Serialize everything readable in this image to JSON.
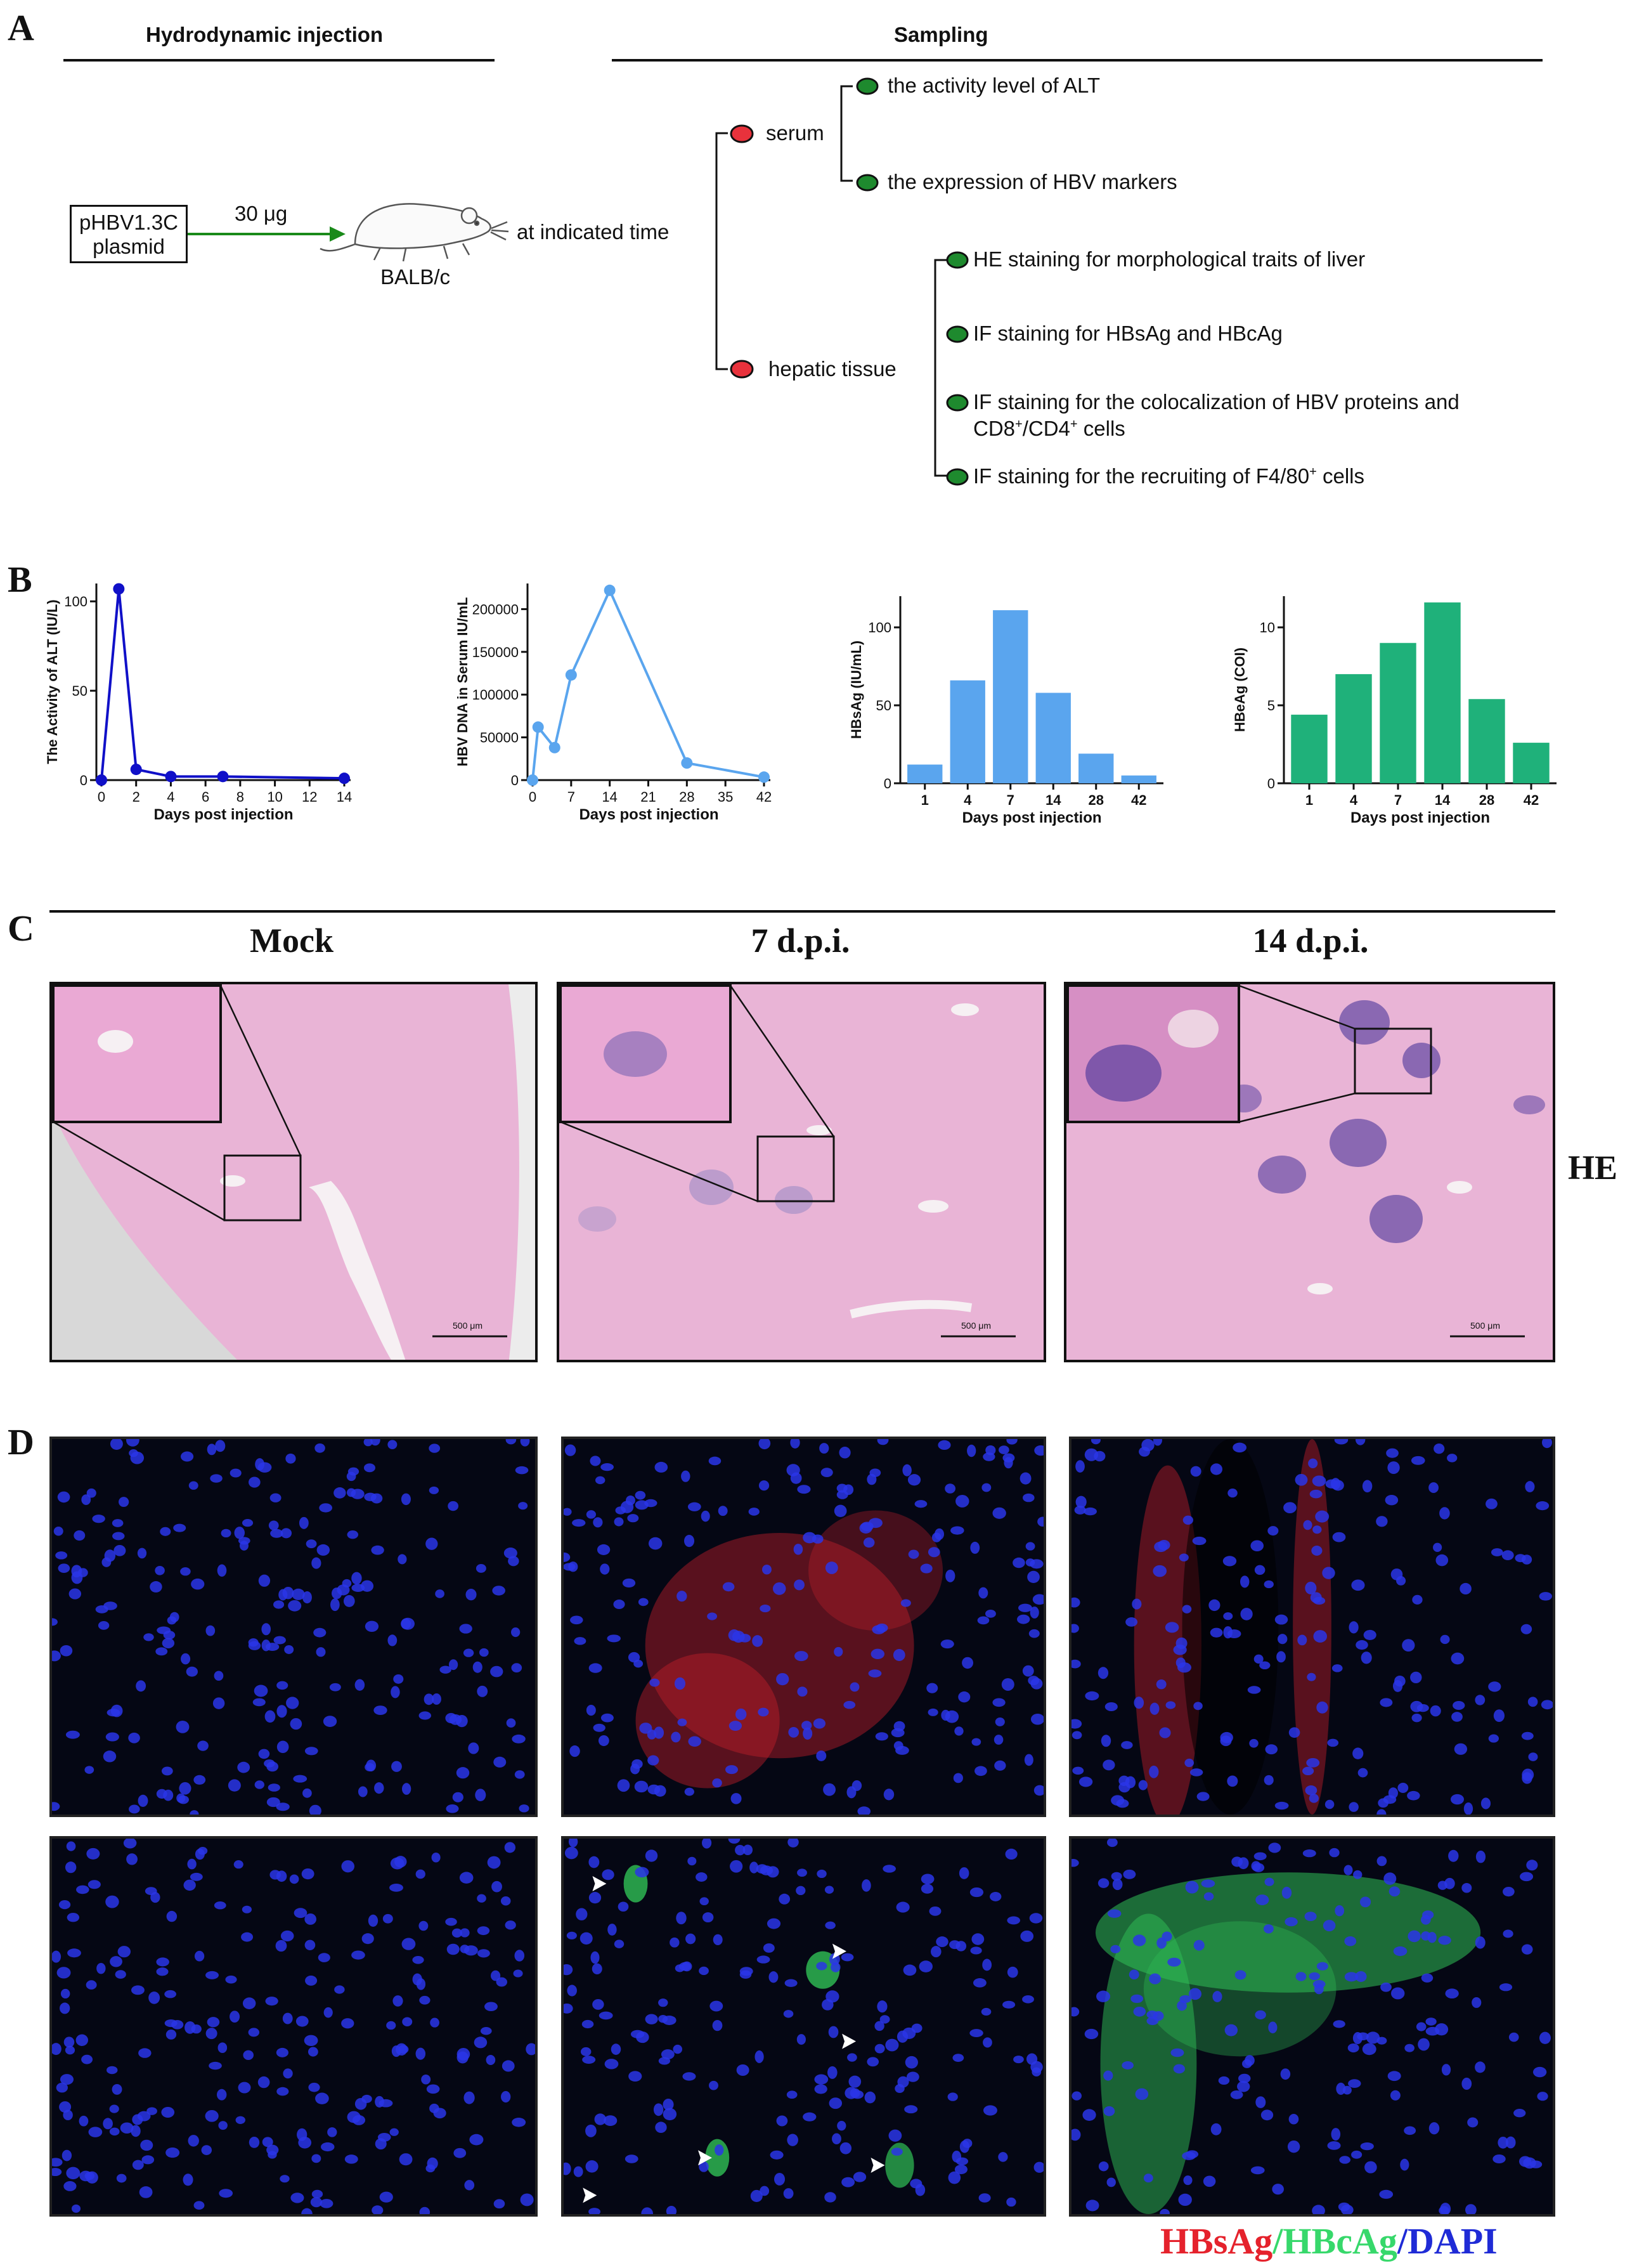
{
  "panels": {
    "a": "A",
    "b": "B",
    "c": "C",
    "d": "D"
  },
  "schematic": {
    "header_left": "Hydrodynamic injection",
    "header_right": "Sampling",
    "plasmid_line1": "pHBV1.3C",
    "plasmid_line2": "plasmid",
    "dose": "30 μg",
    "mouse_strain": "BALB/c",
    "timing": "at indicated time",
    "serum": "serum",
    "serum_items": [
      "the activity level of ALT",
      "the expression of HBV markers"
    ],
    "hepatic": "hepatic tissue",
    "hepatic_items": [
      "HE staining for morphological traits of liver",
      "IF staining for HBsAg and HBcAg",
      "IF staining for the colocalization of HBV proteins and",
      "IF staining for the recruiting of F4/80",
      " cells"
    ],
    "cd_line": {
      "cd8": "CD8",
      "plus": "+",
      "sep": "/CD4",
      "tail": " cells"
    },
    "colors": {
      "red_node": "#e8323c",
      "green_node": "#1e8a2e",
      "arrow": "#1a8a1a"
    }
  },
  "chart_data": [
    {
      "type": "line",
      "title": "",
      "xlabel": "Days post injection",
      "ylabel": "The Activity of ALT (IU/L)",
      "x": [
        0,
        1,
        2,
        4,
        7,
        14
      ],
      "series": [
        {
          "values": [
            0,
            107,
            6,
            2,
            2,
            1
          ]
        }
      ],
      "xticks": [
        "0",
        "2",
        "4",
        "6",
        "8",
        "10",
        "12",
        "14"
      ],
      "yticks": [
        "0",
        "50",
        "100"
      ],
      "xlim": [
        0,
        14
      ],
      "ylim": [
        0,
        110
      ],
      "color": "#1010c8"
    },
    {
      "type": "line",
      "title": "",
      "xlabel": "Days post injection",
      "ylabel": "HBV DNA in Serum IU/mL",
      "x": [
        0,
        1,
        4,
        7,
        14,
        28,
        42
      ],
      "series": [
        {
          "values": [
            0,
            62000,
            38000,
            123000,
            222000,
            20000,
            3500
          ]
        }
      ],
      "xticks": [
        "0",
        "7",
        "14",
        "21",
        "28",
        "35",
        "42"
      ],
      "yticks": [
        "0",
        "50000",
        "100000",
        "150000",
        "200000"
      ],
      "xlim": [
        0,
        42
      ],
      "ylim": [
        0,
        230000
      ],
      "color": "#5aa5ee"
    },
    {
      "type": "bar",
      "title": "",
      "xlabel": "Days post injection",
      "ylabel": "HBsAg (IU/mL)",
      "categories": [
        "1",
        "4",
        "7",
        "14",
        "28",
        "42"
      ],
      "values": [
        12,
        66,
        111,
        58,
        19,
        5
      ],
      "yticks": [
        "0",
        "50",
        "100"
      ],
      "ylim": [
        0,
        120
      ],
      "color": "#5aa5ee"
    },
    {
      "type": "bar",
      "title": "",
      "xlabel": "Days post injection",
      "ylabel": "HBeAg (COI)",
      "categories": [
        "1",
        "4",
        "7",
        "14",
        "28",
        "42"
      ],
      "values": [
        4.4,
        7.0,
        9.0,
        11.6,
        5.4,
        2.6
      ],
      "yticks": [
        "0",
        "5",
        "10"
      ],
      "ylim": [
        0,
        12
      ],
      "color": "#1fb17a"
    }
  ],
  "histology": {
    "columns": [
      "Mock",
      "7 d.p.i.",
      "14 d.p.i."
    ],
    "stain_label": "HE",
    "scale_bar": "500 μm"
  },
  "fluorescence": {
    "legend": {
      "hbsag": "HBsAg",
      "slash1": "/",
      "hbcag": "HBcAg",
      "slash2": "/",
      "dapi": "DAPI"
    },
    "legend_colors": {
      "hbsag": "#e5222c",
      "hbcag": "#37d86b",
      "dapi": "#1f2bd6"
    }
  }
}
